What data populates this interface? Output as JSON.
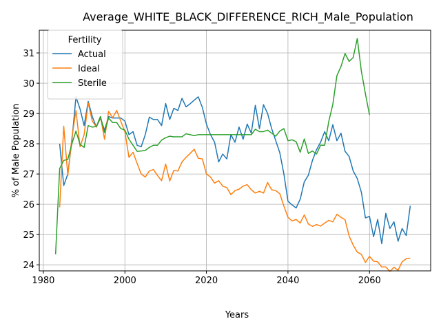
{
  "chart_data": {
    "type": "line",
    "title": "Average_WHITE_BLACK_DIFFERENCE_RICH_Male_Population",
    "xlabel": "Years",
    "ylabel": "% of Male Population",
    "xlim": [
      1979,
      2075
    ],
    "ylim": [
      23.8,
      31.75
    ],
    "xticks": [
      1980,
      2000,
      2020,
      2040,
      2060
    ],
    "yticks": [
      24,
      25,
      26,
      27,
      28,
      29,
      30,
      31
    ],
    "grid": true,
    "legend": {
      "title": "Fertility",
      "position": "top-left"
    },
    "series": [
      {
        "name": "Actual",
        "color": "#1f77b4",
        "x": [
          1984,
          1985,
          1986,
          1987,
          1988,
          1989,
          1990,
          1991,
          1992,
          1993,
          1994,
          1995,
          1996,
          1997,
          1998,
          1999,
          2000,
          2001,
          2002,
          2003,
          2004,
          2005,
          2006,
          2007,
          2008,
          2009,
          2010,
          2011,
          2012,
          2013,
          2014,
          2015,
          2016,
          2017,
          2018,
          2019,
          2020,
          2021,
          2022,
          2023,
          2024,
          2025,
          2026,
          2027,
          2028,
          2029,
          2030,
          2031,
          2032,
          2033,
          2034,
          2035,
          2036,
          2037,
          2038,
          2039,
          2040,
          2041,
          2042,
          2043,
          2044,
          2045,
          2046,
          2047,
          2048,
          2049,
          2050,
          2051,
          2052,
          2053,
          2054,
          2055,
          2056,
          2057,
          2058,
          2059,
          2060,
          2061,
          2062,
          2063,
          2064,
          2065,
          2066,
          2067,
          2068,
          2069,
          2070
        ],
        "values": [
          28.0,
          26.62,
          27.0,
          28.1,
          29.55,
          29.15,
          28.6,
          29.4,
          28.9,
          28.55,
          28.85,
          28.45,
          28.9,
          28.85,
          28.85,
          28.85,
          28.75,
          28.3,
          28.4,
          27.95,
          27.9,
          28.3,
          28.88,
          28.8,
          28.8,
          28.6,
          29.33,
          28.8,
          29.17,
          29.1,
          29.5,
          29.22,
          29.32,
          29.44,
          29.55,
          29.2,
          28.65,
          28.3,
          28.05,
          27.4,
          27.66,
          27.5,
          28.3,
          28.05,
          28.55,
          28.15,
          28.65,
          28.35,
          29.27,
          28.5,
          29.29,
          29.0,
          28.5,
          28.1,
          27.7,
          27.0,
          26.1,
          25.98,
          25.88,
          26.17,
          26.74,
          26.96,
          27.45,
          27.8,
          28.05,
          28.4,
          28.1,
          28.63,
          28.1,
          28.35,
          27.75,
          27.58,
          27.1,
          26.85,
          26.4,
          25.55,
          25.6,
          24.93,
          25.5,
          24.7,
          25.7,
          25.2,
          25.42,
          24.78,
          25.2,
          24.97,
          25.95
        ]
      },
      {
        "name": "Ideal",
        "color": "#ff7f0e",
        "x": [
          1984,
          1985,
          1986,
          1987,
          1988,
          1989,
          1990,
          1991,
          1992,
          1993,
          1994,
          1995,
          1996,
          1997,
          1998,
          1999,
          2000,
          2001,
          2002,
          2003,
          2004,
          2005,
          2006,
          2007,
          2008,
          2009,
          2010,
          2011,
          2012,
          2013,
          2014,
          2015,
          2016,
          2017,
          2018,
          2019,
          2020,
          2021,
          2022,
          2023,
          2024,
          2025,
          2026,
          2027,
          2028,
          2029,
          2030,
          2031,
          2032,
          2033,
          2034,
          2035,
          2036,
          2037,
          2038,
          2039,
          2040,
          2041,
          2042,
          2043,
          2044,
          2045,
          2046,
          2047,
          2048,
          2049,
          2050,
          2051,
          2052,
          2053,
          2054,
          2055,
          2056,
          2057,
          2058,
          2059,
          2060,
          2061,
          2062,
          2063,
          2064,
          2065,
          2066,
          2067,
          2068,
          2069,
          2070
        ],
        "values": [
          25.9,
          28.58,
          26.95,
          28.2,
          29.1,
          27.9,
          28.3,
          29.35,
          28.75,
          28.55,
          28.9,
          28.15,
          29.07,
          28.86,
          29.1,
          28.74,
          28.4,
          27.55,
          27.72,
          27.35,
          27.0,
          26.9,
          27.1,
          27.15,
          26.95,
          26.78,
          27.33,
          26.77,
          27.12,
          27.1,
          27.4,
          27.55,
          27.68,
          27.82,
          27.52,
          27.5,
          27.0,
          26.9,
          26.7,
          26.78,
          26.6,
          26.55,
          26.32,
          26.45,
          26.5,
          26.6,
          26.65,
          26.48,
          26.37,
          26.43,
          26.37,
          26.72,
          26.48,
          26.45,
          26.35,
          25.94,
          25.57,
          25.45,
          25.5,
          25.38,
          25.65,
          25.35,
          25.27,
          25.33,
          25.28,
          25.38,
          25.47,
          25.42,
          25.67,
          25.57,
          25.49,
          24.95,
          24.65,
          24.42,
          24.35,
          24.08,
          24.28,
          24.12,
          24.1,
          23.93,
          23.93,
          23.78,
          23.92,
          23.82,
          24.1,
          24.2,
          24.22
        ]
      },
      {
        "name": "Sterile",
        "color": "#2ca02c",
        "x": [
          1983,
          1984,
          1985,
          1986,
          1987,
          1988,
          1989,
          1990,
          1991,
          1992,
          1993,
          1994,
          1995,
          1996,
          1997,
          1998,
          1999,
          2000,
          2001,
          2002,
          2003,
          2004,
          2005,
          2006,
          2007,
          2008,
          2009,
          2010,
          2011,
          2012,
          2013,
          2014,
          2015,
          2016,
          2017,
          2018,
          2019,
          2020,
          2021,
          2022,
          2023,
          2024,
          2025,
          2026,
          2027,
          2028,
          2029,
          2030,
          2031,
          2032,
          2033,
          2034,
          2035,
          2036,
          2037,
          2038,
          2039,
          2040,
          2041,
          2042,
          2043,
          2044,
          2045,
          2046,
          2047,
          2048,
          2049,
          2050,
          2051,
          2052,
          2053,
          2054,
          2055,
          2056,
          2057,
          2058,
          2059,
          2060
        ],
        "values": [
          24.35,
          27.18,
          27.45,
          27.48,
          28.0,
          28.42,
          27.98,
          27.88,
          28.6,
          28.55,
          28.57,
          28.9,
          28.37,
          28.85,
          28.7,
          28.7,
          28.5,
          28.45,
          28.15,
          27.95,
          27.75,
          27.76,
          27.78,
          27.88,
          27.95,
          27.95,
          28.12,
          28.2,
          28.25,
          28.23,
          28.23,
          28.23,
          28.33,
          28.3,
          28.27,
          28.3,
          28.3,
          28.3,
          28.3,
          28.3,
          28.3,
          28.3,
          28.3,
          28.3,
          28.3,
          28.3,
          28.3,
          28.3,
          28.3,
          28.48,
          28.4,
          28.4,
          28.45,
          28.35,
          28.25,
          28.42,
          28.5,
          28.1,
          28.13,
          28.07,
          27.72,
          28.16,
          27.68,
          27.76,
          27.66,
          27.95,
          27.95,
          28.73,
          29.3,
          30.25,
          30.55,
          30.98,
          30.72,
          30.85,
          31.48,
          30.4,
          29.65,
          28.95
        ]
      }
    ]
  }
}
